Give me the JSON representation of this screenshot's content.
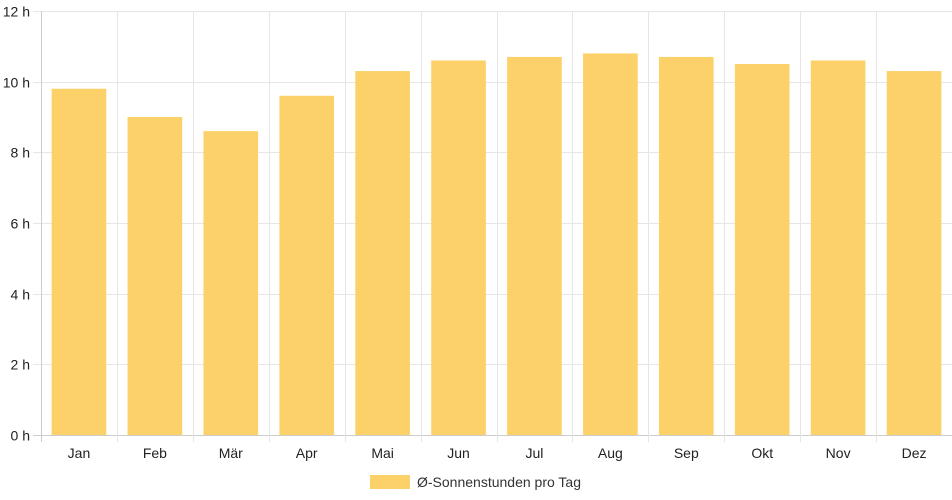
{
  "chart_data": {
    "type": "bar",
    "categories": [
      "Jan",
      "Feb",
      "Mär",
      "Apr",
      "Mai",
      "Jun",
      "Jul",
      "Aug",
      "Sep",
      "Okt",
      "Nov",
      "Dez"
    ],
    "series": [
      {
        "name": "Ø-Sonnenstunden pro Tag",
        "values": [
          9.8,
          9.0,
          8.6,
          9.6,
          10.3,
          10.6,
          10.7,
          10.8,
          10.7,
          10.5,
          10.6,
          10.3
        ]
      }
    ],
    "y_ticks": [
      "0 h",
      "2 h",
      "4 h",
      "6 h",
      "8 h",
      "10 h",
      "12 h"
    ],
    "ylim": [
      0,
      12
    ],
    "grid": true,
    "legend_position": "bottom",
    "colors": {
      "bar": "#fdd16a",
      "grid": "#e6e6e6",
      "axis": "#cccccc"
    }
  }
}
